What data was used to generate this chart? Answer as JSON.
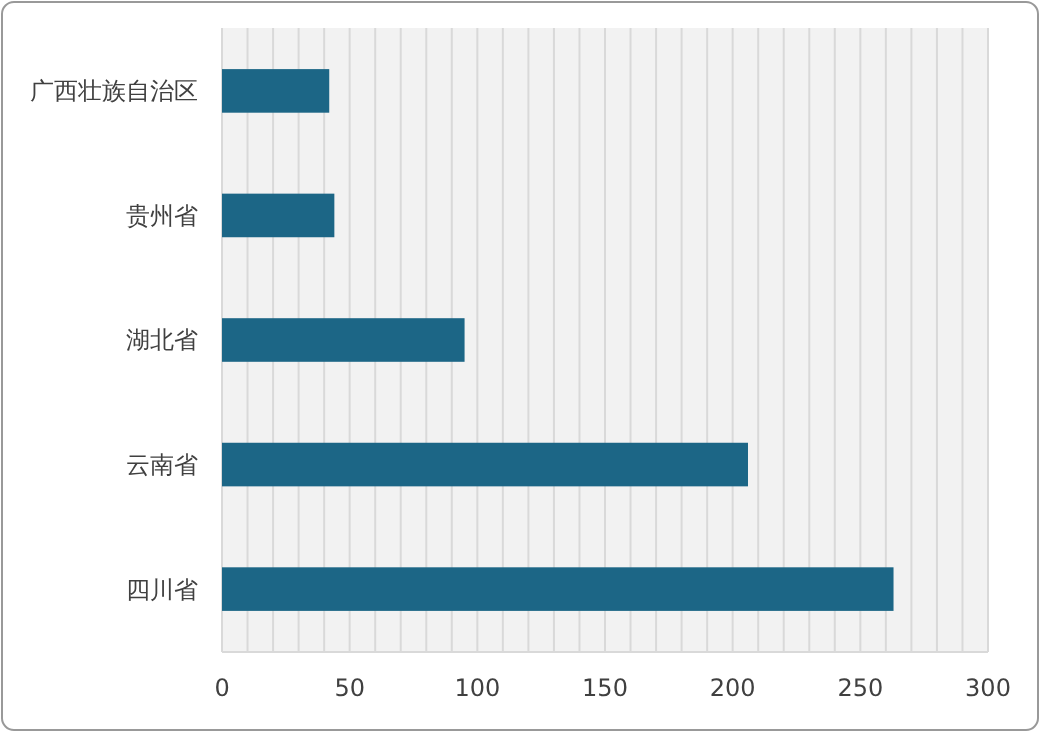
{
  "chart_data": {
    "type": "bar",
    "orientation": "horizontal",
    "categories": [
      "广西壮族自治区",
      "贵州省",
      "湖北省",
      "云南省",
      "四川省"
    ],
    "values": [
      42,
      44,
      95,
      206,
      263
    ],
    "color": "#1c6686",
    "xlim": [
      0,
      300
    ],
    "xticks": [
      0,
      {
        "value": 10,
        "label": null
      },
      {
        "value": 20,
        "label": null
      },
      {
        "value": 30,
        "label": null
      },
      {
        "value": 40,
        "label": null
      },
      50,
      {
        "value": 60,
        "label": null
      },
      {
        "value": 70,
        "label": null
      },
      {
        "value": 80,
        "label": null
      },
      {
        "value": 90,
        "label": null
      },
      100,
      {
        "value": 110,
        "label": null
      },
      {
        "value": 120,
        "label": null
      },
      {
        "value": 130,
        "label": null
      },
      {
        "value": 140,
        "label": null
      },
      150,
      {
        "value": 160,
        "label": null
      },
      {
        "value": 170,
        "label": null
      },
      {
        "value": 180,
        "label": null
      },
      {
        "value": 190,
        "label": null
      },
      200,
      {
        "value": 210,
        "label": null
      },
      {
        "value": 220,
        "label": null
      },
      {
        "value": 230,
        "label": null
      },
      {
        "value": 240,
        "label": null
      },
      250,
      {
        "value": 260,
        "label": null
      },
      {
        "value": 270,
        "label": null
      },
      {
        "value": 280,
        "label": null
      },
      {
        "value": 290,
        "label": null
      },
      300
    ],
    "grid": "x"
  }
}
